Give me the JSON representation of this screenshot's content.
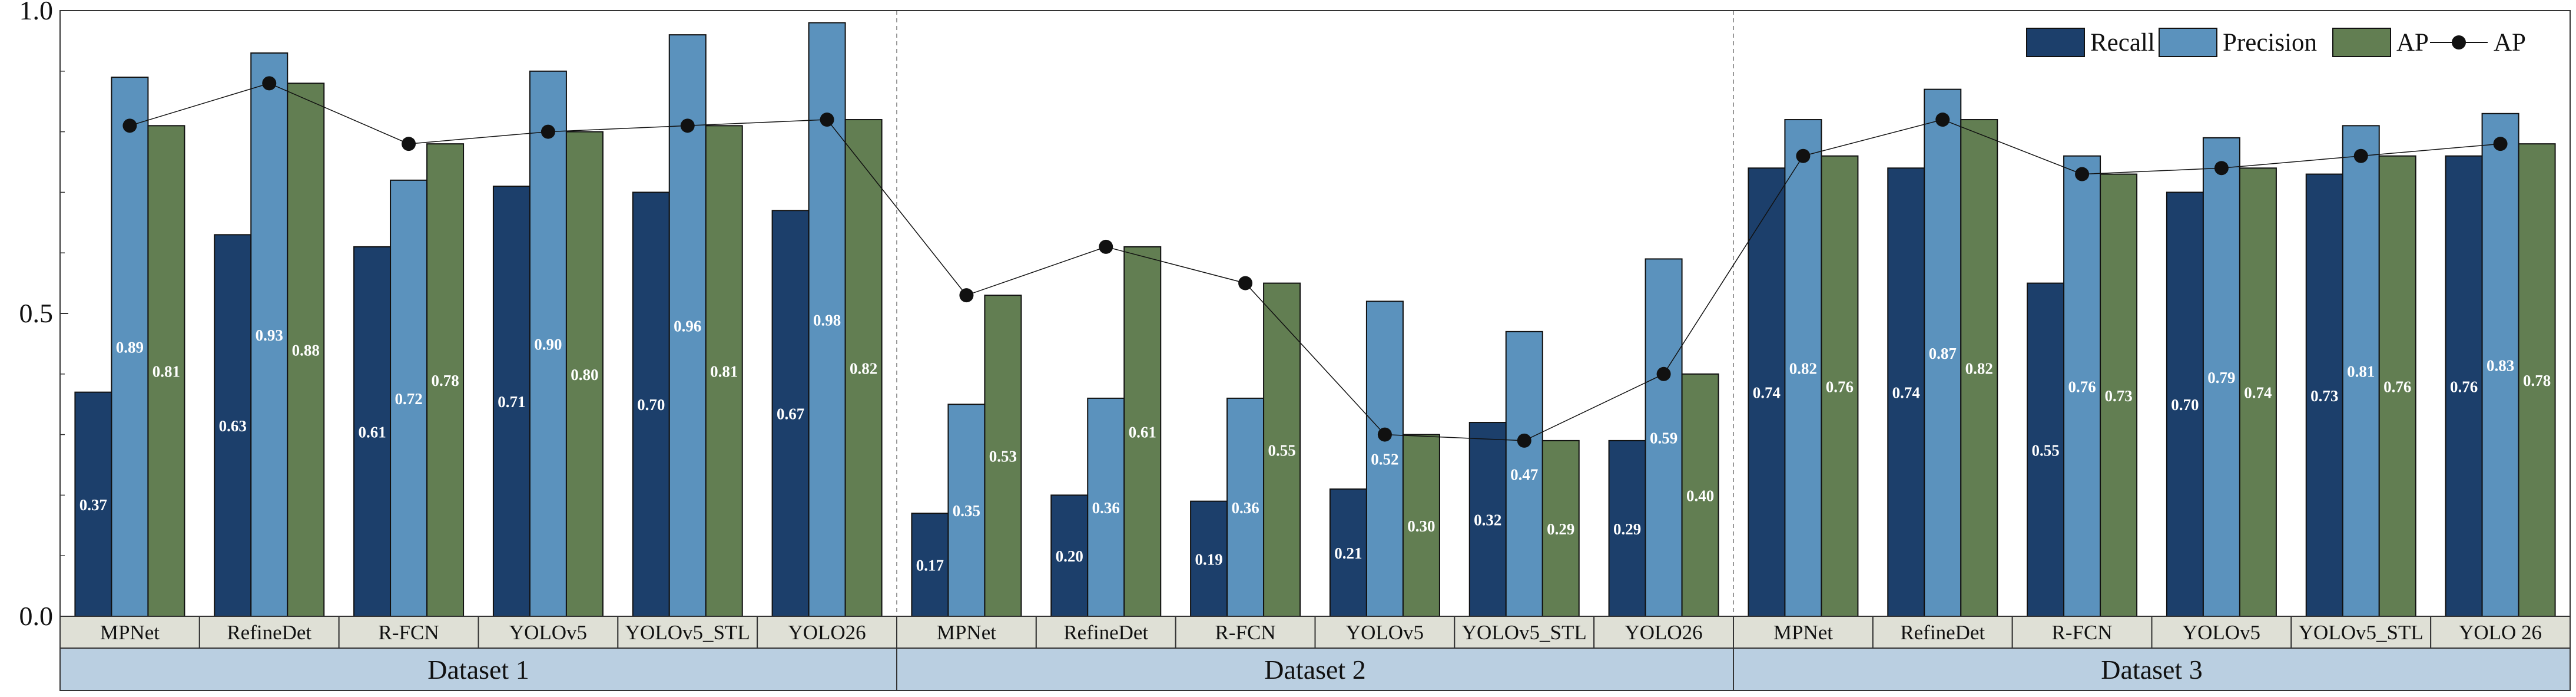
{
  "colors": {
    "recall": "#1c3f6b",
    "precision": "#5b92bd",
    "ap_bar": "#627e52",
    "ap_line": "#111111",
    "cat_bg": "#dfe0d6",
    "ds_bg": "#bacfe1",
    "separator": "#999999",
    "axis": "#333333"
  },
  "chart_data": {
    "type": "bar",
    "ylim": [
      0,
      1.0
    ],
    "yticks": [
      0.0,
      0.5,
      1.0
    ],
    "ytick_labels": [
      "0.0",
      "0.5",
      "1.0"
    ],
    "legend": [
      "Recall",
      "Precision",
      "AP",
      "AP"
    ],
    "legend_position": "top-right",
    "datasets": [
      {
        "name": "Dataset 1",
        "categories": [
          "MPNet",
          "RefineDet",
          "R-FCN",
          "YOLOv5",
          "YOLOv5_STL",
          "YOLO26"
        ],
        "series": [
          {
            "name": "Recall",
            "values": [
              0.37,
              0.63,
              0.61,
              0.71,
              0.7,
              0.67
            ],
            "labels": [
              "0.37",
              "0.63",
              "0.61",
              "0.71",
              "0.70",
              "0.67"
            ]
          },
          {
            "name": "Precision",
            "values": [
              0.89,
              0.93,
              0.72,
              0.9,
              0.96,
              0.98
            ],
            "labels": [
              "0.89",
              "0.93",
              "0.72",
              "0.90",
              "0.96",
              "0.98"
            ]
          },
          {
            "name": "AP",
            "values": [
              0.81,
              0.88,
              0.78,
              0.8,
              0.81,
              0.82
            ],
            "labels": [
              "0.81",
              "0.88",
              "0.78",
              "0.80",
              "0.81",
              "0.82"
            ]
          }
        ]
      },
      {
        "name": "Dataset 2",
        "categories": [
          "MPNet",
          "RefineDet",
          "R-FCN",
          "YOLOv5",
          "YOLOv5_STL",
          "YOLO26"
        ],
        "series": [
          {
            "name": "Recall",
            "values": [
              0.17,
              0.2,
              0.19,
              0.21,
              0.32,
              0.29
            ],
            "labels": [
              "0.17",
              "0.20",
              "0.19",
              "0.21",
              "0.32",
              "0.29"
            ]
          },
          {
            "name": "Precision",
            "values": [
              0.35,
              0.36,
              0.36,
              0.52,
              0.47,
              0.59
            ],
            "labels": [
              "0.35",
              "0.36",
              "0.36",
              "0.52",
              "0.47",
              "0.59"
            ]
          },
          {
            "name": "AP",
            "values": [
              0.53,
              0.61,
              0.55,
              0.3,
              0.29,
              0.4
            ],
            "labels": [
              "0.53",
              "0.61",
              "0.55",
              "0.30",
              "0.29",
              "0.40"
            ]
          }
        ]
      },
      {
        "name": "Dataset 3",
        "categories": [
          "MPNet",
          "RefineDet",
          "R-FCN",
          "YOLOv5",
          "YOLOv5_STL",
          "YOLO 26"
        ],
        "series": [
          {
            "name": "Recall",
            "values": [
              0.74,
              0.74,
              0.55,
              0.7,
              0.73,
              0.76
            ],
            "labels": [
              "0.74",
              "0.74",
              "0.55",
              "0.70",
              "0.73",
              "0.76"
            ]
          },
          {
            "name": "Precision",
            "values": [
              0.82,
              0.87,
              0.76,
              0.79,
              0.81,
              0.83
            ],
            "labels": [
              "0.82",
              "0.87",
              "0.76",
              "0.79",
              "0.81",
              "0.83"
            ]
          },
          {
            "name": "AP",
            "values": [
              0.76,
              0.82,
              0.73,
              0.74,
              0.76,
              0.78
            ],
            "labels": [
              "0.76",
              "0.82",
              "0.73",
              "0.74",
              "0.76",
              "0.78"
            ]
          }
        ]
      }
    ]
  }
}
